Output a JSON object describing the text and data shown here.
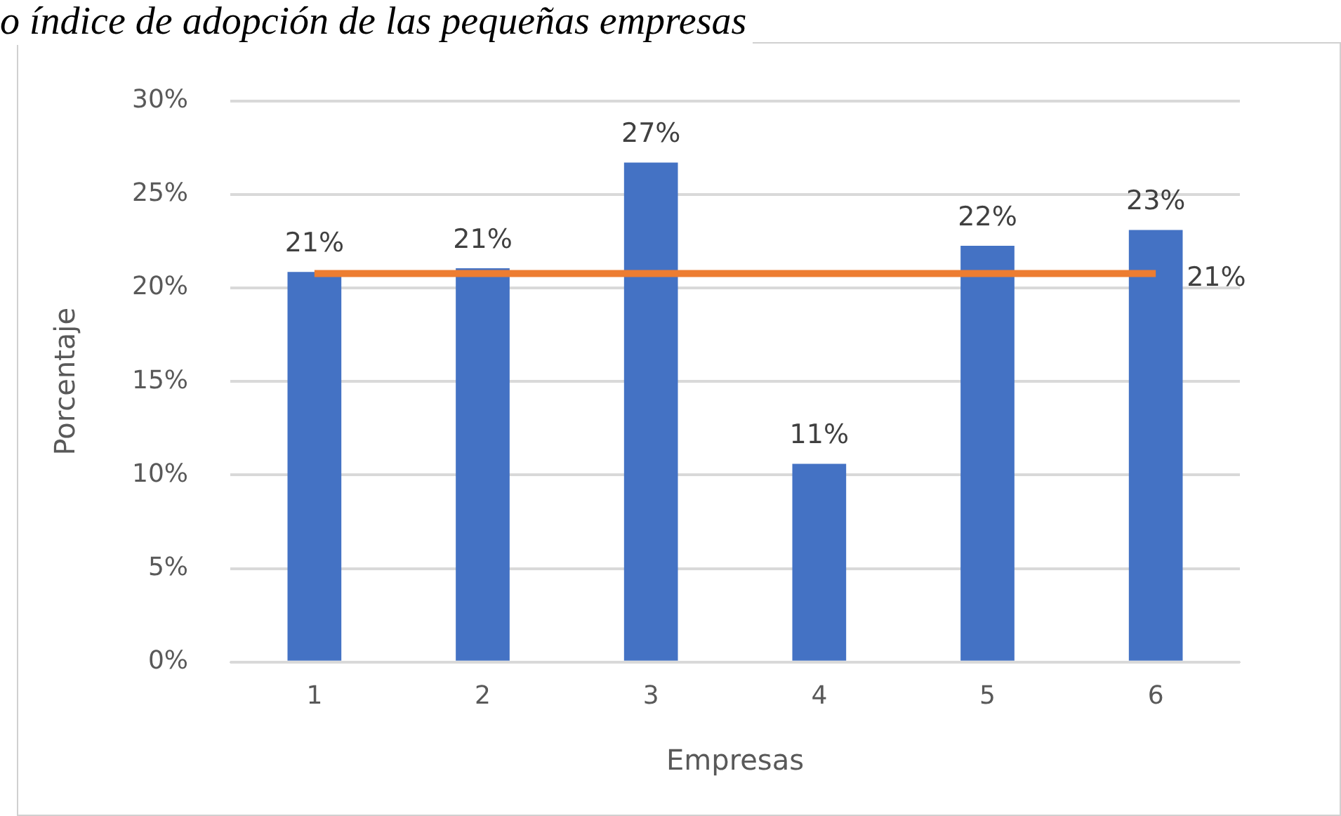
{
  "chart_data": {
    "type": "bar",
    "title": "o índice de adopción de las pequeñas empresas",
    "xlabel": "Empresas",
    "ylabel": "Porcentaje",
    "categories": [
      "1",
      "2",
      "3",
      "4",
      "5",
      "6"
    ],
    "series": [
      {
        "color": "#4472c4",
        "values": [
          20.85,
          21.05,
          26.7,
          10.6,
          22.25,
          23.1
        ],
        "value_labels": [
          "21%",
          "21%",
          "27%",
          "11%",
          "22%",
          "23%"
        ]
      },
      {
        "type": "line",
        "color": "#ed7d31",
        "values": [
          20.77,
          20.77,
          20.77,
          20.77,
          20.77,
          20.77
        ],
        "value_labels": [
          null,
          null,
          null,
          null,
          null,
          "21%"
        ]
      }
    ],
    "ylim": [
      0,
      30
    ],
    "yticks": [
      {
        "value": 0,
        "label": "0%"
      },
      {
        "value": 5,
        "label": "5%"
      },
      {
        "value": 10,
        "label": "10%"
      },
      {
        "value": 15,
        "label": "15%"
      },
      {
        "value": 20,
        "label": "20%"
      },
      {
        "value": 25,
        "label": "25%"
      },
      {
        "value": 30,
        "label": "30%"
      }
    ],
    "grid": "y",
    "legend": false,
    "marker": "none",
    "line_style": "solid"
  }
}
